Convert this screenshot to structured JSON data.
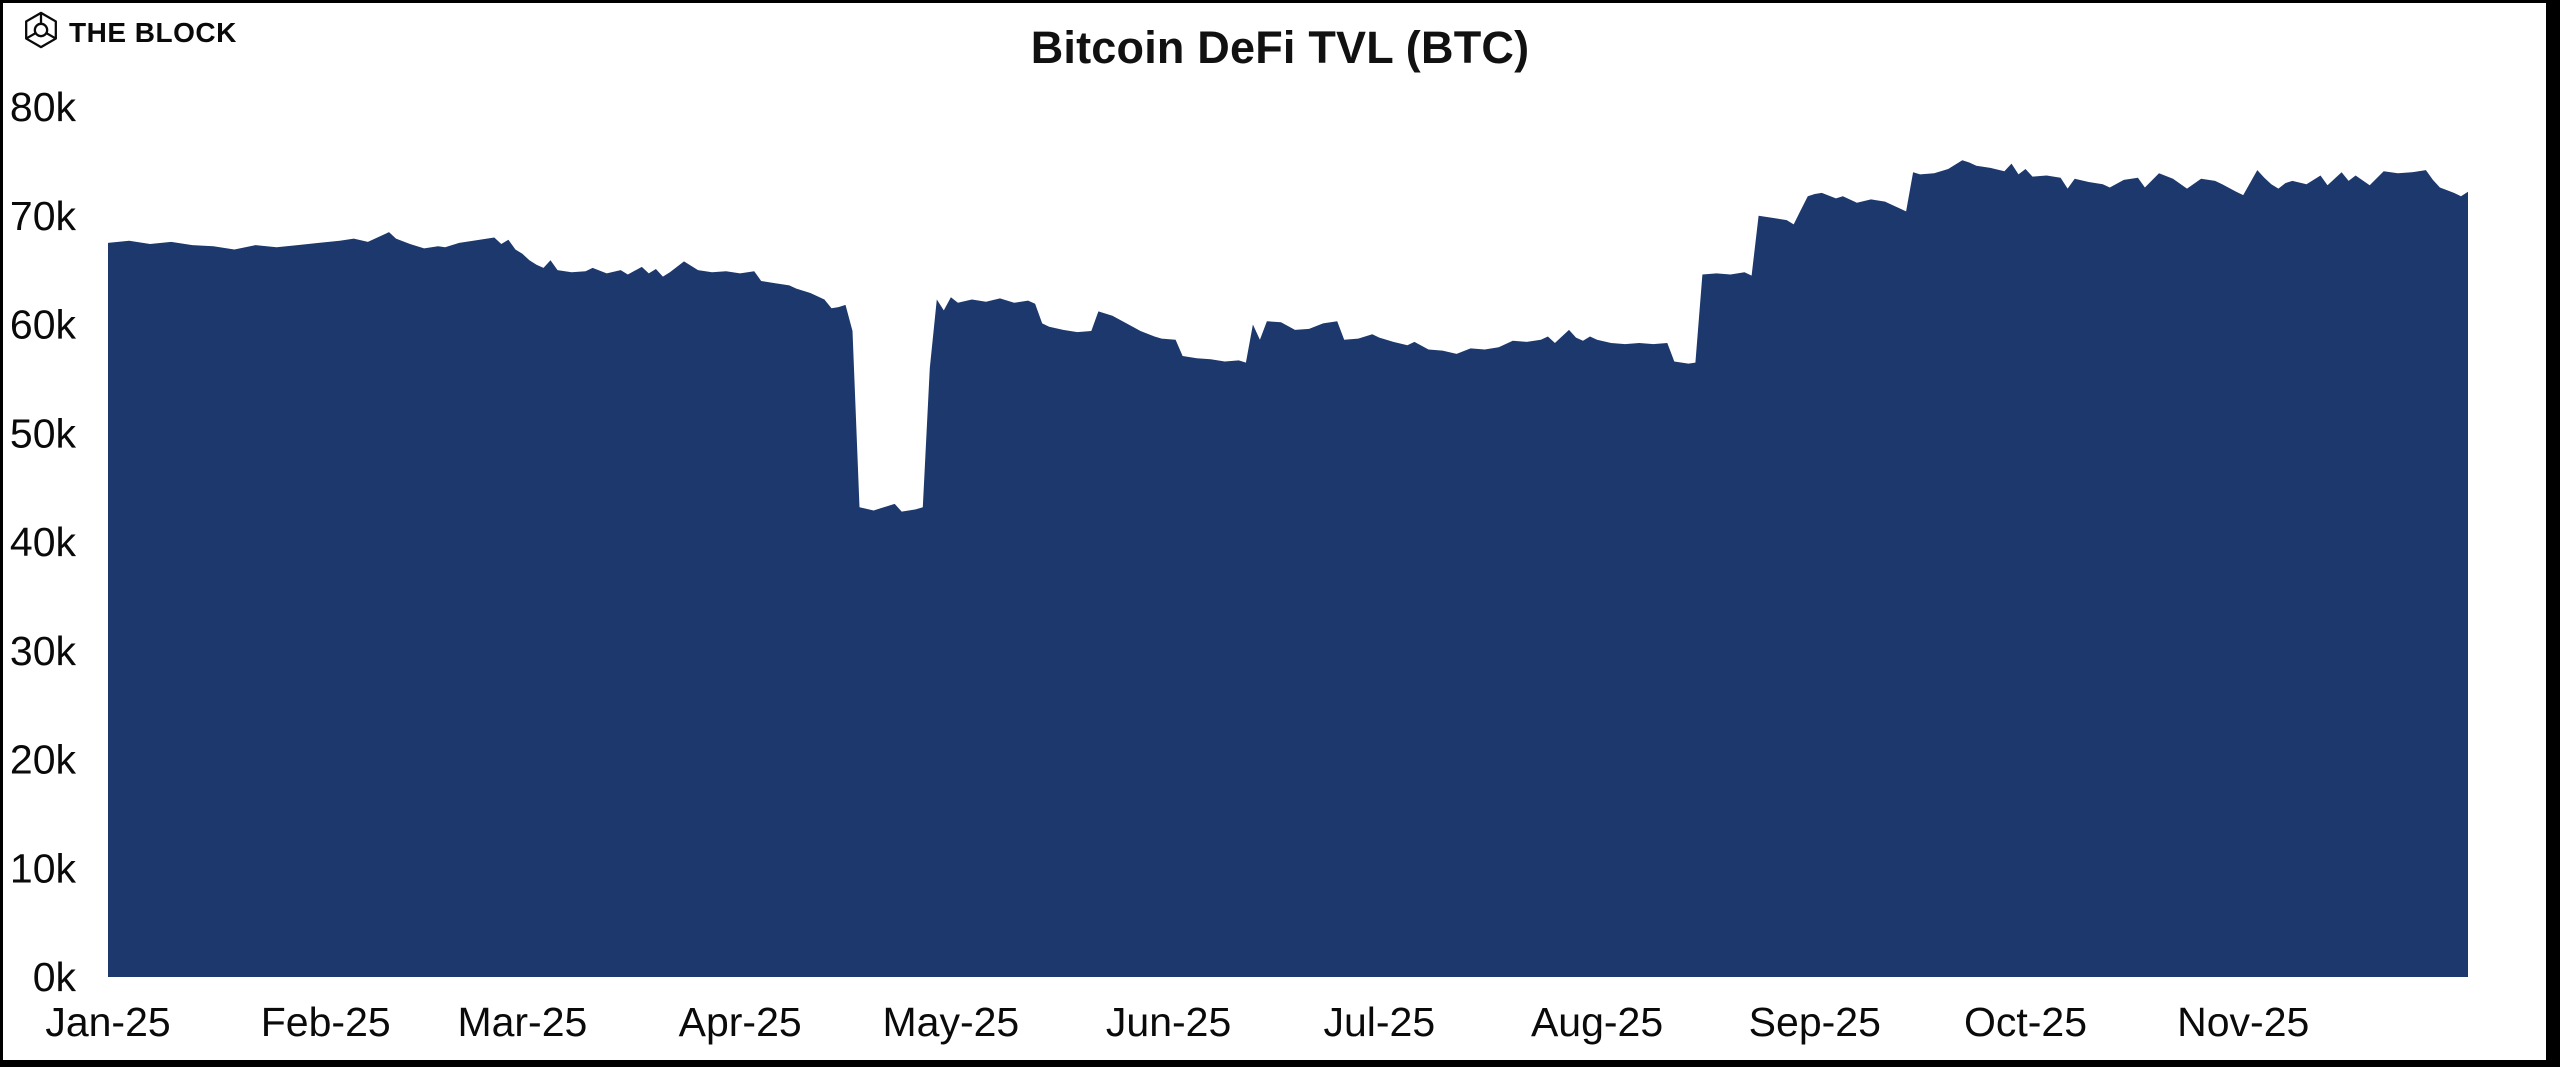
{
  "brand": {
    "name": "THE BLOCK",
    "icon": "block-cube-logo"
  },
  "chart_data": {
    "type": "area",
    "title": "Bitcoin DeFi TVL (BTC)",
    "unit": "BTC",
    "value_scale_note": "values stored in thousands of BTC",
    "series_color": "#1c386c",
    "background": "#ffffff",
    "gridlines": false,
    "legend": "none",
    "ylim_k": [
      0,
      80
    ],
    "y_ticks": [
      {
        "value_k": 0,
        "label": "0k"
      },
      {
        "value_k": 10,
        "label": "10k"
      },
      {
        "value_k": 20,
        "label": "20k"
      },
      {
        "value_k": 30,
        "label": "30k"
      },
      {
        "value_k": 40,
        "label": "40k"
      },
      {
        "value_k": 50,
        "label": "50k"
      },
      {
        "value_k": 60,
        "label": "60k"
      },
      {
        "value_k": 70,
        "label": "70k"
      },
      {
        "value_k": 80,
        "label": "80k"
      }
    ],
    "x_start_date": "2025-01-01",
    "x_total_days": 336,
    "x_ticks": [
      {
        "day": 0,
        "label": "Jan-25"
      },
      {
        "day": 31,
        "label": "Feb-25"
      },
      {
        "day": 59,
        "label": "Mar-25"
      },
      {
        "day": 90,
        "label": "Apr-25"
      },
      {
        "day": 120,
        "label": "May-25"
      },
      {
        "day": 151,
        "label": "Jun-25"
      },
      {
        "day": 181,
        "label": "Jul-25"
      },
      {
        "day": 212,
        "label": "Aug-25"
      },
      {
        "day": 243,
        "label": "Sep-25"
      },
      {
        "day": 273,
        "label": "Oct-25"
      },
      {
        "day": 304,
        "label": "Nov-25"
      }
    ],
    "series": [
      {
        "name": "Bitcoin DeFi TVL",
        "points_day_valueK": [
          [
            0,
            67.5
          ],
          [
            3,
            67.7
          ],
          [
            6,
            67.4
          ],
          [
            9,
            67.6
          ],
          [
            12,
            67.3
          ],
          [
            15,
            67.2
          ],
          [
            18,
            66.9
          ],
          [
            21,
            67.3
          ],
          [
            24,
            67.1
          ],
          [
            27,
            67.3
          ],
          [
            30,
            67.5
          ],
          [
            33,
            67.7
          ],
          [
            35,
            67.9
          ],
          [
            37,
            67.6
          ],
          [
            40,
            68.5
          ],
          [
            41,
            67.9
          ],
          [
            43,
            67.4
          ],
          [
            45,
            67.0
          ],
          [
            47,
            67.2
          ],
          [
            48,
            67.1
          ],
          [
            50,
            67.5
          ],
          [
            52,
            67.7
          ],
          [
            55,
            68.0
          ],
          [
            56,
            67.4
          ],
          [
            57,
            67.8
          ],
          [
            58,
            66.9
          ],
          [
            59,
            66.5
          ],
          [
            60,
            65.9
          ],
          [
            61,
            65.5
          ],
          [
            62,
            65.2
          ],
          [
            63,
            65.9
          ],
          [
            64,
            65.0
          ],
          [
            66,
            64.8
          ],
          [
            68,
            64.9
          ],
          [
            69,
            65.2
          ],
          [
            71,
            64.7
          ],
          [
            73,
            65.0
          ],
          [
            74,
            64.6
          ],
          [
            76,
            65.3
          ],
          [
            77,
            64.7
          ],
          [
            78,
            65.1
          ],
          [
            79,
            64.4
          ],
          [
            80,
            64.8
          ],
          [
            82,
            65.8
          ],
          [
            84,
            65.0
          ],
          [
            86,
            64.8
          ],
          [
            88,
            64.9
          ],
          [
            90,
            64.7
          ],
          [
            92,
            64.9
          ],
          [
            93,
            64.0
          ],
          [
            95,
            63.8
          ],
          [
            97,
            63.6
          ],
          [
            98,
            63.3
          ],
          [
            100,
            62.9
          ],
          [
            102,
            62.3
          ],
          [
            103,
            61.5
          ],
          [
            104,
            61.6
          ],
          [
            105,
            61.8
          ],
          [
            106,
            59.4
          ],
          [
            107,
            43.2
          ],
          [
            109,
            42.9
          ],
          [
            110,
            43.1
          ],
          [
            112,
            43.5
          ],
          [
            113,
            42.8
          ],
          [
            115,
            43.0
          ],
          [
            116,
            43.2
          ],
          [
            117,
            56.0
          ],
          [
            118,
            62.3
          ],
          [
            119,
            61.3
          ],
          [
            120,
            62.5
          ],
          [
            121,
            62.0
          ],
          [
            123,
            62.3
          ],
          [
            125,
            62.1
          ],
          [
            127,
            62.4
          ],
          [
            129,
            62.0
          ],
          [
            131,
            62.2
          ],
          [
            132,
            61.9
          ],
          [
            133,
            60.1
          ],
          [
            134,
            59.8
          ],
          [
            136,
            59.5
          ],
          [
            138,
            59.3
          ],
          [
            140,
            59.4
          ],
          [
            141,
            61.2
          ],
          [
            143,
            60.8
          ],
          [
            145,
            60.1
          ],
          [
            147,
            59.4
          ],
          [
            149,
            58.9
          ],
          [
            150,
            58.7
          ],
          [
            152,
            58.6
          ],
          [
            153,
            57.1
          ],
          [
            155,
            56.9
          ],
          [
            157,
            56.8
          ],
          [
            159,
            56.6
          ],
          [
            161,
            56.7
          ],
          [
            162,
            56.5
          ],
          [
            163,
            60.0
          ],
          [
            164,
            58.6
          ],
          [
            165,
            60.3
          ],
          [
            167,
            60.2
          ],
          [
            169,
            59.5
          ],
          [
            171,
            59.6
          ],
          [
            173,
            60.1
          ],
          [
            175,
            60.3
          ],
          [
            176,
            58.6
          ],
          [
            178,
            58.7
          ],
          [
            180,
            59.1
          ],
          [
            181,
            58.8
          ],
          [
            183,
            58.4
          ],
          [
            185,
            58.1
          ],
          [
            186,
            58.4
          ],
          [
            188,
            57.7
          ],
          [
            190,
            57.6
          ],
          [
            192,
            57.3
          ],
          [
            194,
            57.8
          ],
          [
            196,
            57.7
          ],
          [
            198,
            57.9
          ],
          [
            200,
            58.5
          ],
          [
            202,
            58.4
          ],
          [
            204,
            58.6
          ],
          [
            205,
            58.9
          ],
          [
            206,
            58.3
          ],
          [
            208,
            59.5
          ],
          [
            209,
            58.8
          ],
          [
            210,
            58.5
          ],
          [
            211,
            58.9
          ],
          [
            212,
            58.6
          ],
          [
            214,
            58.3
          ],
          [
            216,
            58.2
          ],
          [
            218,
            58.3
          ],
          [
            220,
            58.2
          ],
          [
            222,
            58.3
          ],
          [
            223,
            56.6
          ],
          [
            225,
            56.4
          ],
          [
            226,
            56.5
          ],
          [
            227,
            64.6
          ],
          [
            229,
            64.7
          ],
          [
            231,
            64.6
          ],
          [
            233,
            64.8
          ],
          [
            234,
            64.5
          ],
          [
            235,
            70.0
          ],
          [
            237,
            69.8
          ],
          [
            239,
            69.6
          ],
          [
            240,
            69.2
          ],
          [
            241,
            70.5
          ],
          [
            242,
            71.8
          ],
          [
            243,
            72.0
          ],
          [
            244,
            72.1
          ],
          [
            246,
            71.6
          ],
          [
            247,
            71.8
          ],
          [
            249,
            71.2
          ],
          [
            251,
            71.5
          ],
          [
            253,
            71.3
          ],
          [
            254,
            71.0
          ],
          [
            255,
            70.7
          ],
          [
            256,
            70.4
          ],
          [
            257,
            74.0
          ],
          [
            258,
            73.8
          ],
          [
            260,
            73.9
          ],
          [
            262,
            74.3
          ],
          [
            264,
            75.1
          ],
          [
            265,
            74.9
          ],
          [
            266,
            74.6
          ],
          [
            268,
            74.4
          ],
          [
            270,
            74.1
          ],
          [
            271,
            74.8
          ],
          [
            272,
            73.8
          ],
          [
            273,
            74.3
          ],
          [
            274,
            73.6
          ],
          [
            276,
            73.7
          ],
          [
            278,
            73.5
          ],
          [
            279,
            72.5
          ],
          [
            280,
            73.4
          ],
          [
            282,
            73.1
          ],
          [
            284,
            72.9
          ],
          [
            285,
            72.6
          ],
          [
            287,
            73.3
          ],
          [
            289,
            73.5
          ],
          [
            290,
            72.6
          ],
          [
            292,
            73.9
          ],
          [
            294,
            73.4
          ],
          [
            296,
            72.5
          ],
          [
            298,
            73.4
          ],
          [
            300,
            73.2
          ],
          [
            301,
            72.9
          ],
          [
            303,
            72.2
          ],
          [
            304,
            71.9
          ],
          [
            306,
            74.2
          ],
          [
            307,
            73.5
          ],
          [
            308,
            72.9
          ],
          [
            309,
            72.5
          ],
          [
            310,
            73.0
          ],
          [
            311,
            73.2
          ],
          [
            313,
            72.9
          ],
          [
            315,
            73.7
          ],
          [
            316,
            72.8
          ],
          [
            318,
            74.0
          ],
          [
            319,
            73.2
          ],
          [
            320,
            73.7
          ],
          [
            322,
            72.8
          ],
          [
            324,
            74.1
          ],
          [
            326,
            73.9
          ],
          [
            328,
            74.0
          ],
          [
            330,
            74.2
          ],
          [
            331,
            73.3
          ],
          [
            332,
            72.6
          ],
          [
            334,
            72.1
          ],
          [
            335,
            71.8
          ],
          [
            336,
            72.2
          ]
        ]
      }
    ]
  }
}
